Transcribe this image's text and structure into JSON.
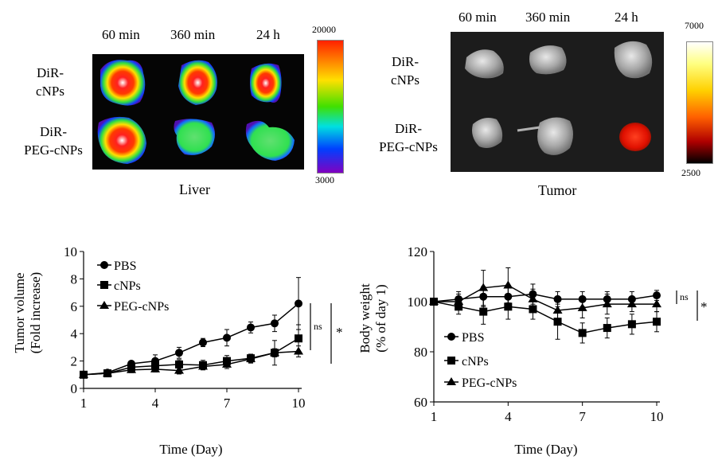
{
  "liver_panel": {
    "time_labels": [
      "60 min",
      "360 min",
      "24 h"
    ],
    "row_labels": [
      {
        "line1": "DiR-",
        "line2": "cNPs"
      },
      {
        "line1": "DiR-",
        "line2": "PEG-cNPs"
      }
    ],
    "colorbar_max": "20000",
    "colorbar_min": "3000",
    "caption": "Liver"
  },
  "tumor_panel": {
    "time_labels": [
      "60 min",
      "360 min",
      "24 h"
    ],
    "row_labels": [
      {
        "line1": "DiR-",
        "line2": "cNPs"
      },
      {
        "line1": "DiR-",
        "line2": "PEG-cNPs"
      }
    ],
    "colorbar_max": "7000",
    "colorbar_min": "2500",
    "caption": "Tumor"
  },
  "chart_data": [
    {
      "type": "line",
      "ylabel_line1": "Tumor volume",
      "ylabel_line2": "(Fold increase)",
      "xlabel": "Time (Day)",
      "xlim": [
        1,
        10
      ],
      "ylim": [
        0,
        10
      ],
      "xticks": [
        "1",
        "4",
        "7",
        "10"
      ],
      "yticks": [
        "0",
        "2",
        "4",
        "6",
        "8",
        "10"
      ],
      "x": [
        1,
        2,
        3,
        4,
        5,
        6,
        7,
        8,
        9,
        10
      ],
      "series": [
        {
          "name": "PBS",
          "marker": "circle",
          "values": [
            1.0,
            1.15,
            1.8,
            2.0,
            2.6,
            3.35,
            3.7,
            4.45,
            4.75,
            6.2
          ],
          "errors": [
            0.1,
            0.15,
            0.2,
            0.45,
            0.4,
            0.3,
            0.6,
            0.4,
            0.6,
            1.9
          ]
        },
        {
          "name": "cNPs",
          "marker": "square",
          "values": [
            1.0,
            1.1,
            1.55,
            1.65,
            1.75,
            1.7,
            2.0,
            2.2,
            2.6,
            3.65
          ],
          "errors": [
            0.1,
            0.1,
            0.2,
            0.35,
            0.35,
            0.35,
            0.4,
            0.3,
            0.9,
            1.0
          ]
        },
        {
          "name": "PEG-cNPs",
          "marker": "triangle",
          "values": [
            1.0,
            1.1,
            1.35,
            1.4,
            1.3,
            1.6,
            1.75,
            2.15,
            2.6,
            2.7
          ],
          "errors": [
            0.1,
            0.1,
            0.2,
            0.2,
            0.25,
            0.2,
            0.3,
            0.3,
            0.3,
            0.4
          ]
        }
      ],
      "legend_labels": [
        "PBS",
        "cNPs",
        "PEG-cNPs"
      ],
      "annotations": [
        "ns",
        "*"
      ]
    },
    {
      "type": "line",
      "ylabel_line1": "Body weight",
      "ylabel_line2": "(% of day 1)",
      "xlabel": "Time (Day)",
      "xlim": [
        1,
        10
      ],
      "ylim": [
        60,
        120
      ],
      "xticks": [
        "1",
        "4",
        "7",
        "10"
      ],
      "yticks": [
        "60",
        "80",
        "100",
        "120"
      ],
      "x": [
        1,
        2,
        3,
        4,
        5,
        6,
        7,
        8,
        9,
        10
      ],
      "series": [
        {
          "name": "PBS",
          "marker": "circle",
          "values": [
            100,
            101,
            102,
            102,
            103,
            101,
            101,
            101,
            101,
            102.5
          ],
          "errors": [
            1,
            3,
            4,
            4,
            4,
            3,
            3,
            3,
            3,
            2
          ]
        },
        {
          "name": "cNPs",
          "marker": "square",
          "values": [
            100,
            98,
            96,
            98,
            97,
            92,
            87.5,
            89.5,
            91,
            92
          ],
          "errors": [
            1,
            3,
            5,
            5,
            4,
            7,
            4,
            4,
            4,
            4
          ]
        },
        {
          "name": "PEG-cNPs",
          "marker": "triangle",
          "values": [
            100,
            100,
            105.5,
            106.5,
            101,
            96.5,
            97.5,
            99,
            99,
            99
          ],
          "errors": [
            1,
            3,
            7,
            7,
            4,
            4,
            4,
            4,
            3,
            3
          ]
        }
      ],
      "legend_labels": [
        "PBS",
        "cNPs",
        "PEG-cNPs"
      ],
      "annotations": [
        "ns",
        "*"
      ]
    }
  ]
}
